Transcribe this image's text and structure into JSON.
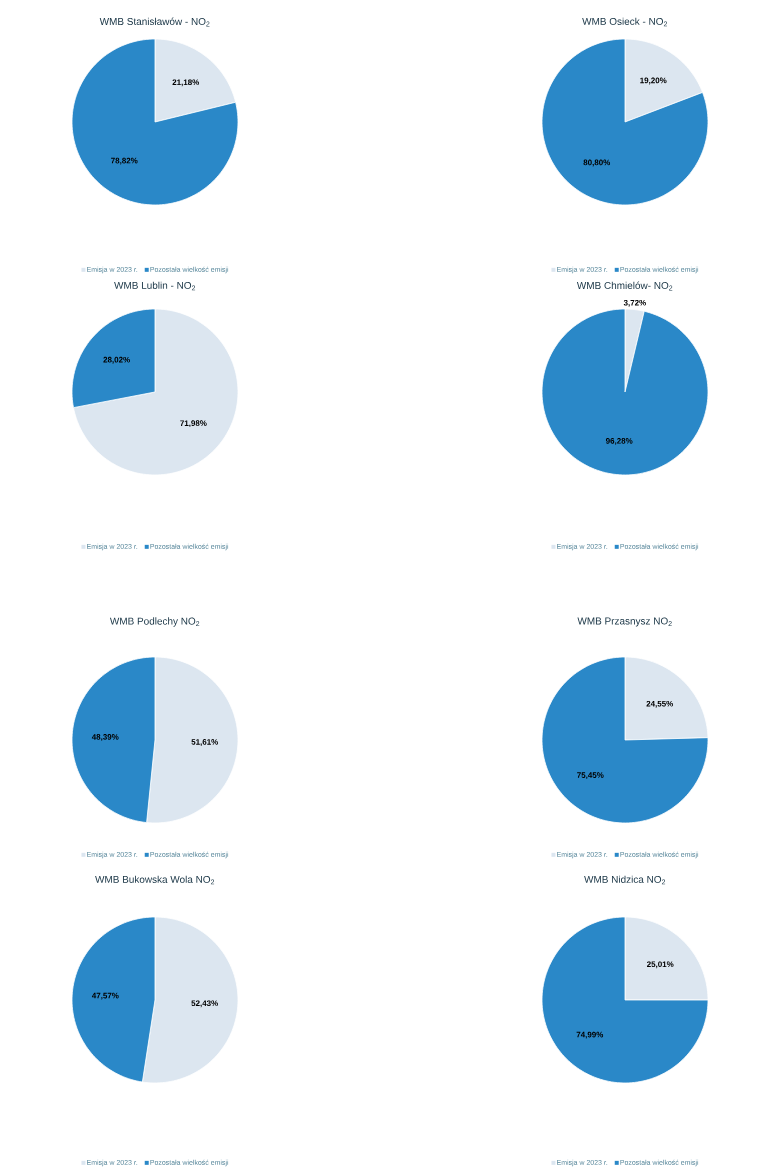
{
  "chart_data": [
    {
      "type": "pie",
      "title": "WMB Stanisławów - NO$_{2}$",
      "categories": [
        "Emisja w 2023 r.",
        "Pozostała wielkość emisji"
      ],
      "values": [
        21.18,
        78.82
      ],
      "value_labels": [
        "21,18%",
        "78,82%"
      ],
      "colors": [
        "#dce6f0",
        "#2a88c8"
      ],
      "legend": "bottom"
    },
    {
      "type": "pie",
      "title": "WMB Osieck - NO$_{2}$",
      "categories": [
        "Emisja w 2023 r.",
        "Pozostała wielkość emisji"
      ],
      "values": [
        19.2,
        80.8
      ],
      "value_labels": [
        "19,20%",
        "80,80%"
      ],
      "colors": [
        "#dce6f0",
        "#2a88c8"
      ],
      "legend": "bottom"
    },
    {
      "type": "pie",
      "title": "WMB Lublin - NO$_{2}$",
      "categories": [
        "Emisja w 2023 r.",
        "Pozostała wielkość emisji"
      ],
      "values": [
        71.98,
        28.02
      ],
      "value_labels": [
        "71,98%",
        "28,02%"
      ],
      "colors": [
        "#dce6f0",
        "#2a88c8"
      ],
      "legend": "bottom"
    },
    {
      "type": "pie",
      "title": "WMB Chmielów- NO$_{2}$",
      "categories": [
        "Emisja w 2023 r.",
        "Pozostała wielkość emisji"
      ],
      "values": [
        3.72,
        96.28
      ],
      "value_labels": [
        "3,72%",
        "96,28%"
      ],
      "colors": [
        "#dce6f0",
        "#2a88c8"
      ],
      "legend": "bottom"
    },
    {
      "type": "pie",
      "title": "WMB Podlechy NO$_{2}$",
      "categories": [
        "Emisja w 2023 r.",
        "Pozostała wielkość emisji"
      ],
      "values": [
        51.61,
        48.39
      ],
      "value_labels": [
        "51,61%",
        "48,39%"
      ],
      "colors": [
        "#dce6f0",
        "#2a88c8"
      ],
      "legend": "bottom"
    },
    {
      "type": "pie",
      "title": "WMB Przasnysz NO$_{2}$",
      "categories": [
        "Emisja w 2023 r.",
        "Pozostała wielkość emisji"
      ],
      "values": [
        24.55,
        75.45
      ],
      "value_labels": [
        "24,55%",
        "75,45%"
      ],
      "colors": [
        "#dce6f0",
        "#2a88c8"
      ],
      "legend": "bottom"
    },
    {
      "type": "pie",
      "title": "WMB Bukowska Wola NO$_{2}$",
      "categories": [
        "Emisja w 2023 r.",
        "Pozostała wielkość emisji"
      ],
      "values": [
        52.43,
        47.57
      ],
      "value_labels": [
        "52,43%",
        "47,57%"
      ],
      "colors": [
        "#dce6f0",
        "#2a88c8"
      ],
      "legend": "bottom"
    },
    {
      "type": "pie",
      "title": "WMB Nidzica NO$_{2}$",
      "categories": [
        "Emisja w 2023 r.",
        "Pozostała wielkość emisji"
      ],
      "values": [
        25.01,
        74.99
      ],
      "value_labels": [
        "25,01%",
        "74,99%"
      ],
      "colors": [
        "#dce6f0",
        "#2a88c8"
      ],
      "legend": "bottom"
    }
  ]
}
